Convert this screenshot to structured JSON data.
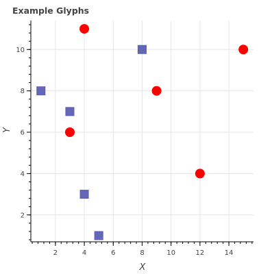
{
  "chart_data": {
    "type": "scatter",
    "title": "Example Glyphs",
    "xlabel": "X",
    "ylabel": "Y",
    "xlim": [
      0.3,
      15.7
    ],
    "ylim": [
      0.7,
      11.4
    ],
    "x_ticks": [
      2,
      4,
      6,
      8,
      10,
      12,
      14
    ],
    "y_ticks": [
      2,
      4,
      6,
      8,
      10
    ],
    "grid": true,
    "series": [
      {
        "marker": "square",
        "color": "#5c5fb4",
        "points": [
          [
            1,
            8
          ],
          [
            3,
            7
          ],
          [
            4,
            3
          ],
          [
            5,
            1
          ],
          [
            8,
            10
          ]
        ]
      },
      {
        "marker": "circle",
        "color": "#ff0000",
        "points": [
          [
            3,
            6
          ],
          [
            4,
            11
          ],
          [
            9,
            8
          ],
          [
            12,
            4
          ],
          [
            15,
            10
          ]
        ]
      }
    ]
  }
}
